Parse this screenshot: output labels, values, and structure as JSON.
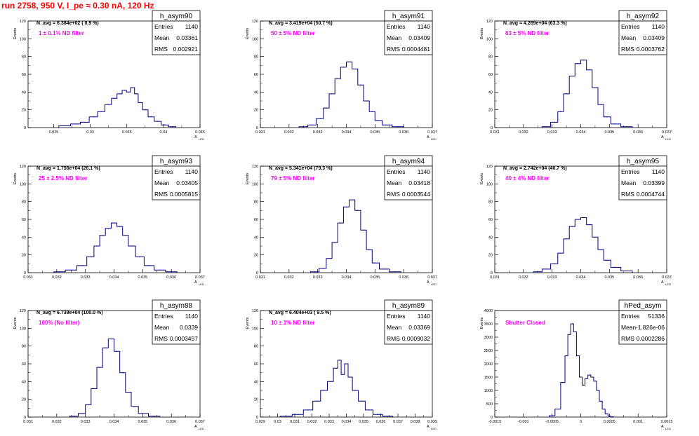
{
  "page_title": "run 2758,   950 V, I_pe ≈ 0.30 nA, 120 Hz",
  "colors": {
    "title": "#ff0000",
    "filter_label": "#ff00ff",
    "histogram": "#000080",
    "axis": "#000000"
  },
  "stats_labels": {
    "entries": "Entries",
    "mean": "Mean",
    "rms": "RMS"
  },
  "axis_titles": {
    "y": "Events",
    "x_main": "A",
    "x_sub": "LED"
  },
  "chart_data": [
    {
      "type": "histogram",
      "name": "h_asym90",
      "navg": "N_avg = 6.384e+02 ( 0.9 %)",
      "filter_label": "1 ± 0.1% ND filter",
      "stats": {
        "entries": "1140",
        "mean": "0.03361",
        "rms": "0.002921"
      },
      "xlim": [
        0.0215,
        0.045
      ],
      "ylim": [
        0,
        120
      ],
      "xticks": [
        0.025,
        0.03,
        0.035,
        0.04,
        0.045
      ],
      "xtick_labels": [
        "0.025",
        "0.03",
        "0.035",
        "0.04",
        "0.045"
      ],
      "yticks": [
        0,
        20,
        40,
        60,
        80,
        100,
        120
      ],
      "ytick_labels": [
        "0",
        "20",
        "40",
        "60",
        "80",
        "100",
        "120"
      ],
      "x": [
        0.0265,
        0.0281,
        0.0292,
        0.0305,
        0.0315,
        0.0325,
        0.0333,
        0.034,
        0.0347,
        0.0352,
        0.0358,
        0.0363,
        0.0368,
        0.0375,
        0.0383,
        0.0392,
        0.0402,
        0.0412
      ],
      "y": [
        2,
        4,
        6,
        12,
        18,
        26,
        33,
        38,
        42,
        40,
        45,
        38,
        28,
        20,
        12,
        7,
        3,
        1
      ]
    },
    {
      "type": "histogram",
      "name": "h_asym91",
      "navg": "N_avg = 3.419e+04 (50.7 %)",
      "filter_label": "50 ± 5% ND filter",
      "stats": {
        "entries": "1140",
        "mean": "0.03409",
        "rms": "0.0004481"
      },
      "xlim": [
        0.031,
        0.037
      ],
      "ylim": [
        0,
        120
      ],
      "xticks": [
        0.031,
        0.032,
        0.033,
        0.034,
        0.035,
        0.036,
        0.037
      ],
      "xtick_labels": [
        "0.031",
        "0.032",
        "0.033",
        "0.034",
        "0.035",
        "0.036",
        "0.037"
      ],
      "yticks": [
        0,
        20,
        40,
        60,
        80,
        100,
        120
      ],
      "ytick_labels": [
        "0",
        "20",
        "40",
        "60",
        "80",
        "100",
        "120"
      ],
      "x": [
        0.0325,
        0.0328,
        0.0331,
        0.0333,
        0.0335,
        0.0337,
        0.0339,
        0.0341,
        0.0343,
        0.0345,
        0.0347,
        0.0349,
        0.0351,
        0.0354,
        0.0358
      ],
      "y": [
        1,
        3,
        10,
        22,
        38,
        55,
        68,
        74,
        66,
        48,
        30,
        18,
        8,
        3,
        1
      ]
    },
    {
      "type": "histogram",
      "name": "h_asym92",
      "navg": "N_avg = 4.269e+04 (63.3 %)",
      "filter_label": "63 ± 5% ND filter",
      "stats": {
        "entries": "1140",
        "mean": "0.03409",
        "rms": "0.0003762"
      },
      "xlim": [
        0.031,
        0.037
      ],
      "ylim": [
        0,
        120
      ],
      "xticks": [
        0.031,
        0.032,
        0.033,
        0.034,
        0.035,
        0.036,
        0.037
      ],
      "xtick_labels": [
        "0.031",
        "0.032",
        "0.033",
        "0.034",
        "0.035",
        "0.036",
        "0.037"
      ],
      "yticks": [
        0,
        20,
        40,
        60,
        80,
        100,
        120
      ],
      "ytick_labels": [
        "0",
        "20",
        "40",
        "60",
        "80",
        "100",
        "120"
      ],
      "x": [
        0.0328,
        0.0331,
        0.0333,
        0.0335,
        0.0337,
        0.0339,
        0.0341,
        0.0343,
        0.0345,
        0.0347,
        0.0349,
        0.0352,
        0.0356
      ],
      "y": [
        1,
        6,
        18,
        38,
        58,
        72,
        76,
        65,
        45,
        26,
        12,
        4,
        1
      ]
    },
    {
      "type": "histogram",
      "name": "h_asym93",
      "navg": "N_avg = 1.756e+04 (26.1 %)",
      "filter_label": "25 ± 2.5% ND filter",
      "stats": {
        "entries": "1140",
        "mean": "0.03405",
        "rms": "0.0005815"
      },
      "xlim": [
        0.031,
        0.037
      ],
      "ylim": [
        0,
        120
      ],
      "xticks": [
        0.031,
        0.032,
        0.033,
        0.034,
        0.035,
        0.036,
        0.037
      ],
      "xtick_labels": [
        "0.031",
        "0.032",
        "0.033",
        "0.034",
        "0.035",
        "0.036",
        "0.037"
      ],
      "yticks": [
        0,
        20,
        40,
        60,
        80,
        100,
        120
      ],
      "ytick_labels": [
        "0",
        "20",
        "40",
        "60",
        "80",
        "100",
        "120"
      ],
      "x": [
        0.0321,
        0.0325,
        0.0329,
        0.0332,
        0.0334,
        0.0336,
        0.0338,
        0.034,
        0.0342,
        0.0344,
        0.0346,
        0.0349,
        0.0352,
        0.0356,
        0.036
      ],
      "y": [
        1,
        3,
        8,
        18,
        30,
        42,
        50,
        56,
        52,
        42,
        30,
        18,
        8,
        3,
        1
      ]
    },
    {
      "type": "histogram",
      "name": "h_asym94",
      "navg": "N_avg = 5.341e+04 (79.3 %)",
      "filter_label": "79 ± 5% ND filter",
      "stats": {
        "entries": "1140",
        "mean": "0.03418",
        "rms": "0.0003544"
      },
      "xlim": [
        0.031,
        0.037
      ],
      "ylim": [
        0,
        120
      ],
      "xticks": [
        0.031,
        0.032,
        0.033,
        0.034,
        0.035,
        0.036,
        0.037
      ],
      "xtick_labels": [
        "0.031",
        "0.032",
        "0.033",
        "0.034",
        "0.035",
        "0.036",
        "0.037"
      ],
      "yticks": [
        0,
        20,
        40,
        60,
        80,
        100,
        120
      ],
      "ytick_labels": [
        "0",
        "20",
        "40",
        "60",
        "80",
        "100",
        "120"
      ],
      "x": [
        0.0329,
        0.0332,
        0.0334,
        0.0336,
        0.0338,
        0.034,
        0.0342,
        0.0344,
        0.0346,
        0.0348,
        0.035,
        0.0353,
        0.0357
      ],
      "y": [
        1,
        5,
        16,
        34,
        56,
        74,
        82,
        70,
        48,
        26,
        11,
        4,
        1
      ]
    },
    {
      "type": "histogram",
      "name": "h_asym95",
      "navg": "N_avg = 2.742e+04 (40.7 %)",
      "filter_label": "40 ± 4% ND filter",
      "stats": {
        "entries": "1140",
        "mean": "0.03399",
        "rms": "0.0004744"
      },
      "xlim": [
        0.031,
        0.037
      ],
      "ylim": [
        0,
        120
      ],
      "xticks": [
        0.031,
        0.032,
        0.033,
        0.034,
        0.035,
        0.036,
        0.037
      ],
      "xtick_labels": [
        "0.031",
        "0.032",
        "0.033",
        "0.034",
        "0.035",
        "0.036",
        "0.037"
      ],
      "yticks": [
        0,
        20,
        40,
        60,
        80,
        100,
        120
      ],
      "ytick_labels": [
        "0",
        "20",
        "40",
        "60",
        "80",
        "100",
        "120"
      ],
      "x": [
        0.0325,
        0.0328,
        0.0331,
        0.0333,
        0.0335,
        0.0337,
        0.0339,
        0.0341,
        0.0343,
        0.0345,
        0.0347,
        0.0349,
        0.0352,
        0.0356
      ],
      "y": [
        1,
        4,
        10,
        22,
        38,
        52,
        60,
        62,
        54,
        40,
        26,
        14,
        6,
        2
      ]
    },
    {
      "type": "histogram",
      "name": "h_asym88",
      "navg": "N_avg = 6.739e+04 (100.0 %)",
      "filter_label": "100% (No filter)",
      "stats": {
        "entries": "1140",
        "mean": "0.0339",
        "rms": "0.0003457"
      },
      "xlim": [
        0.031,
        0.037
      ],
      "ylim": [
        0,
        120
      ],
      "xticks": [
        0.031,
        0.032,
        0.033,
        0.034,
        0.035,
        0.036,
        0.037
      ],
      "xtick_labels": [
        "0.031",
        "0.032",
        "0.033",
        "0.034",
        "0.035",
        "0.036",
        "0.037"
      ],
      "yticks": [
        0,
        20,
        40,
        60,
        80,
        100,
        120
      ],
      "ytick_labels": [
        "0",
        "20",
        "40",
        "60",
        "80",
        "100",
        "120"
      ],
      "x": [
        0.0326,
        0.0329,
        0.0331,
        0.0333,
        0.0335,
        0.0337,
        0.0339,
        0.0341,
        0.0343,
        0.0345,
        0.0347,
        0.035,
        0.0354
      ],
      "y": [
        1,
        4,
        14,
        32,
        56,
        78,
        88,
        74,
        50,
        28,
        12,
        4,
        1
      ]
    },
    {
      "type": "histogram",
      "name": "h_asym89",
      "navg": "N_avg = 6.404e+03 ( 9.5 %)",
      "filter_label": "10 ± 1% ND filter",
      "stats": {
        "entries": "1140",
        "mean": "0.03369",
        "rms": "0.0009032"
      },
      "xlim": [
        0.029,
        0.039
      ],
      "ylim": [
        0,
        120
      ],
      "xticks": [
        0.029,
        0.03,
        0.031,
        0.032,
        0.033,
        0.034,
        0.035,
        0.036,
        0.037,
        0.038,
        0.039
      ],
      "xtick_labels": [
        "0.029",
        "0.03",
        "0.031",
        "0.032",
        "0.033",
        "0.034",
        "0.035",
        "0.036",
        "0.037",
        "0.038",
        "0.039"
      ],
      "yticks": [
        0,
        20,
        40,
        60,
        80,
        100,
        120
      ],
      "ytick_labels": [
        "0",
        "20",
        "40",
        "60",
        "80",
        "100",
        "120"
      ],
      "x": [
        0.0305,
        0.0312,
        0.0318,
        0.0323,
        0.0327,
        0.0331,
        0.0334,
        0.0336,
        0.0338,
        0.034,
        0.0342,
        0.0345,
        0.0349,
        0.0353,
        0.0358,
        0.0364
      ],
      "y": [
        1,
        3,
        8,
        18,
        30,
        40,
        55,
        64,
        48,
        60,
        45,
        30,
        18,
        8,
        3,
        1
      ]
    },
    {
      "type": "histogram",
      "name": "hPed_asym",
      "navg": "",
      "filter_label": "Shutter Closed",
      "stats": {
        "entries": "51336",
        "mean": "-1.826e-06",
        "rms": "0.0002286"
      },
      "xlim": [
        -0.0015,
        0.0015
      ],
      "ylim": [
        0,
        4000
      ],
      "xticks": [
        -0.0015,
        -0.001,
        -0.0005,
        0,
        0.0005,
        0.001,
        0.0015
      ],
      "xtick_labels": [
        "-0.0015",
        "-0.001",
        "-0.0005",
        "0",
        "0.0005",
        "0.001",
        "0.0015"
      ],
      "yticks": [
        0,
        500,
        1000,
        1500,
        2000,
        2500,
        3000,
        3500,
        4000
      ],
      "ytick_labels": [
        "0",
        "500",
        "1000",
        "1500",
        "2000",
        "2500",
        "3000",
        "3500",
        "4000"
      ],
      "x": [
        -0.0005,
        -0.0004,
        -0.0003,
        -0.00025,
        -0.0002,
        -0.00015,
        -0.0001,
        -5e-05,
        0,
        5e-05,
        0.0001,
        0.00015,
        0.0002,
        0.00025,
        0.0003,
        0.00035,
        0.0004,
        0.00045,
        0.0005,
        0.00055
      ],
      "y": [
        50,
        300,
        1300,
        2300,
        3100,
        3500,
        3200,
        2300,
        1500,
        1200,
        1450,
        1580,
        1500,
        1350,
        1000,
        600,
        300,
        120,
        40,
        10
      ]
    }
  ]
}
